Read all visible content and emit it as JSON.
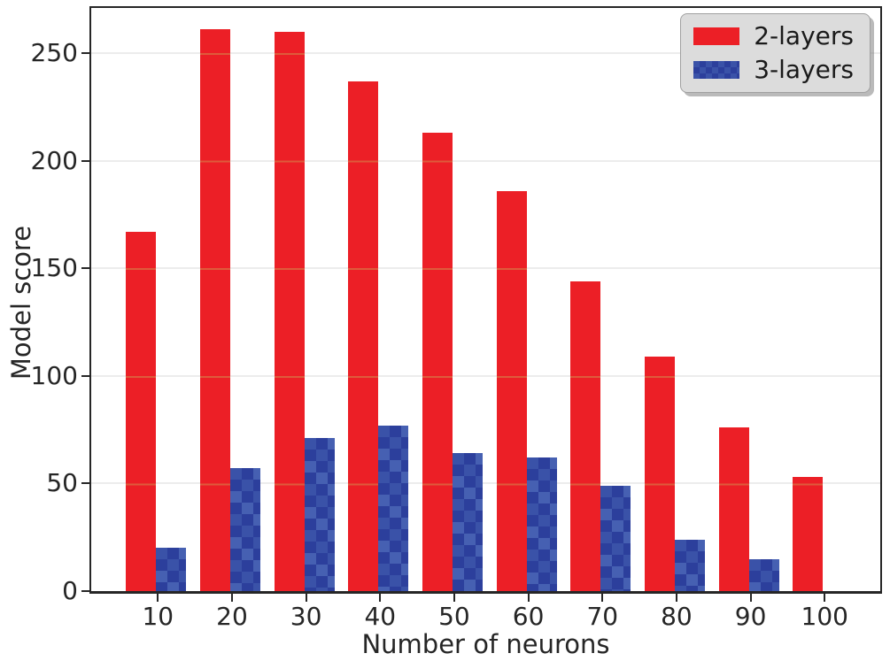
{
  "chart_data": {
    "type": "bar",
    "title": "",
    "xlabel": "Number of neurons",
    "ylabel": "Model score",
    "categories": [
      10,
      20,
      30,
      40,
      50,
      60,
      70,
      80,
      90,
      100
    ],
    "series": [
      {
        "name": "2-layers",
        "color": "#ec1f26",
        "values": [
          167,
          261,
          260,
          237,
          213,
          186,
          144,
          109,
          76,
          53
        ]
      },
      {
        "name": "3-layers",
        "color": "#3a52a8",
        "hatch_color": "#2c3f9c",
        "values": [
          20,
          57,
          71,
          77,
          64,
          62,
          49,
          24,
          15,
          0
        ]
      }
    ],
    "yticks": [
      0,
      50,
      100,
      150,
      200,
      250
    ],
    "ylim": [
      0,
      271
    ],
    "xlim": [
      1,
      107.5
    ],
    "grid": true,
    "grid_color": "#ececec",
    "grid_over_red_color": "#de5b3b",
    "spine_color": "#262626",
    "legend_position": "upper right",
    "legend_bg": "#dcdcdc"
  }
}
